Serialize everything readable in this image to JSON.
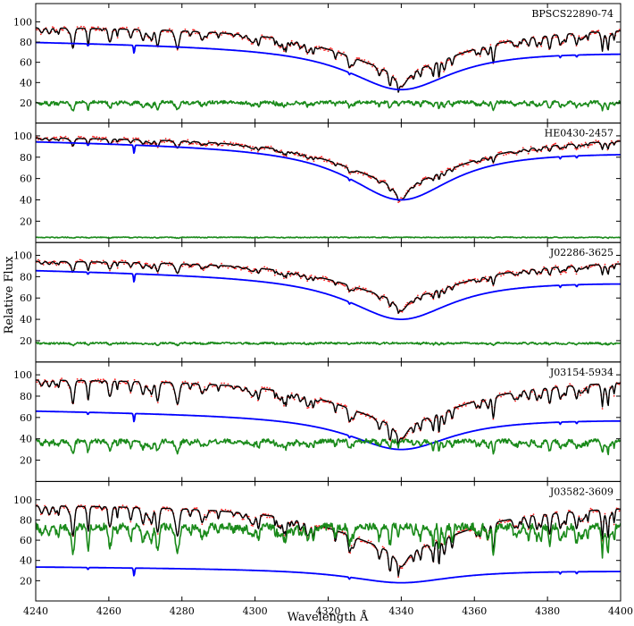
{
  "chart_data": {
    "type": "line",
    "xlabel": "Wavelength Å",
    "ylabel": "Relative Flux",
    "xlim": [
      4240,
      4400
    ],
    "xticks": [
      4240,
      4260,
      4280,
      4300,
      4320,
      4340,
      4360,
      4380,
      4400
    ],
    "grid": false,
    "series_styles": {
      "observed": "red dotted",
      "synthetic": "black",
      "continuum": "blue",
      "residual": "green"
    },
    "colors": {
      "observed": "#ff2020",
      "synthetic": "#000000",
      "continuum": "#0000ff",
      "residual": "#1a8a1a"
    },
    "panels": [
      {
        "label": "BPSCS22890-74",
        "ylim": [
          0,
          118
        ],
        "yticks": [
          20,
          40,
          60,
          80,
          100
        ],
        "hbeta_center": 4340,
        "flux_level": 96,
        "flux_core": 36,
        "continuum_start": 81,
        "continuum_end": 71,
        "continuum_core": 33,
        "residual_level": 17,
        "residual_amp": 6
      },
      {
        "label": "HE0430-2457",
        "ylim": [
          0,
          112
        ],
        "yticks": [
          20,
          40,
          60,
          80,
          100
        ],
        "hbeta_center": 4340,
        "flux_level": 100,
        "flux_core": 40,
        "continuum_start": 96,
        "continuum_end": 86,
        "continuum_core": 40,
        "residual_level": 4,
        "residual_amp": 1.5
      },
      {
        "label": "J02286-3625",
        "ylim": [
          0,
          112
        ],
        "yticks": [
          20,
          40,
          60,
          80,
          100
        ],
        "hbeta_center": 4340,
        "flux_level": 96,
        "flux_core": 48,
        "continuum_start": 87,
        "continuum_end": 76,
        "continuum_core": 40,
        "residual_level": 16,
        "residual_amp": 3
      },
      {
        "label": "J03154-5934",
        "ylim": [
          0,
          112
        ],
        "yticks": [
          20,
          40,
          60,
          80,
          100
        ],
        "hbeta_center": 4340,
        "flux_level": 97,
        "flux_core": 40,
        "continuum_start": 67,
        "continuum_end": 59,
        "continuum_core": 30,
        "residual_level": 33,
        "residual_amp": 8
      },
      {
        "label": "J03582-3609",
        "ylim": [
          0,
          118
        ],
        "yticks": [
          20,
          40,
          60,
          80,
          100
        ],
        "hbeta_center": 4340,
        "flux_level": 96,
        "flux_core": 34,
        "continuum_start": 34,
        "continuum_end": 30,
        "continuum_core": 18,
        "residual_level": 65,
        "residual_amp": 14
      }
    ]
  }
}
